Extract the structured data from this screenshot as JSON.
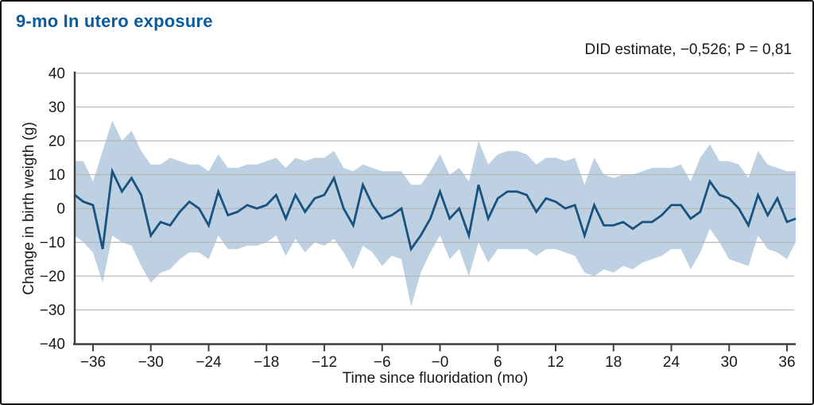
{
  "title": "9-mo In utero exposure",
  "annotation": "DID estimate, −0,526; P = 0,81",
  "colors": {
    "title_blue": "#0b5a9d",
    "line_navy": "#19527f",
    "band_blue": "#bdd1e2",
    "grid_gray": "#b3b3b3",
    "axis_dark": "#3d3d3d",
    "text_black": "#1a1a1a",
    "frame_black": "#141414",
    "background": "#ffffff"
  },
  "chart_data": {
    "type": "line",
    "title": "9-mo In utero exposure",
    "annotation": "DID estimate, −0,526; P = 0,81",
    "xlabel": "Time since fluoridation (mo)",
    "ylabel": "Change in birth weigth (g)",
    "xlim": [
      -38,
      37
    ],
    "ylim": [
      -40,
      40
    ],
    "grid": true,
    "legend_position": "none",
    "x_ticks": [
      -36,
      -30,
      -24,
      -18,
      -12,
      -6,
      0,
      6,
      12,
      18,
      24,
      30,
      36
    ],
    "x_tick_labels": [
      "−36",
      "−30",
      "−24",
      "−18",
      "−12",
      "−6",
      "−0",
      "6",
      "12",
      "18",
      "24",
      "30",
      "36"
    ],
    "y_ticks": [
      40,
      30,
      20,
      10,
      0,
      -10,
      -20,
      -30,
      -40
    ],
    "y_tick_labels": [
      "40",
      "30",
      "20",
      "10",
      "0",
      "−10",
      "−20",
      "−30",
      "−40"
    ],
    "x": [
      -38,
      -37,
      -36,
      -35,
      -34,
      -33,
      -32,
      -31,
      -30,
      -29,
      -28,
      -27,
      -26,
      -25,
      -24,
      -23,
      -22,
      -21,
      -20,
      -19,
      -18,
      -17,
      -16,
      -15,
      -14,
      -13,
      -12,
      -11,
      -10,
      -9,
      -8,
      -7,
      -6,
      -5,
      -4,
      -3,
      -2,
      -1,
      0,
      1,
      2,
      3,
      4,
      5,
      6,
      7,
      8,
      9,
      10,
      11,
      12,
      13,
      14,
      15,
      16,
      17,
      18,
      19,
      20,
      21,
      22,
      23,
      24,
      25,
      26,
      27,
      28,
      29,
      30,
      31,
      32,
      33,
      34,
      35,
      36,
      37
    ],
    "series": [
      {
        "name": "DID point estimate",
        "role": "line",
        "color": "#19527f",
        "values": [
          4,
          2,
          1,
          -12,
          11,
          5,
          9,
          4,
          -8,
          -4,
          -5,
          -1,
          2,
          0,
          -5,
          5,
          -2,
          -1,
          1,
          0,
          1,
          4,
          -3,
          4,
          -1,
          3,
          4,
          9,
          0,
          -5,
          7,
          1,
          -3,
          -2,
          0,
          -12,
          -8,
          -3,
          5,
          -3,
          0,
          -8,
          7,
          -3,
          3,
          5,
          5,
          4,
          -1,
          3,
          2,
          0,
          1,
          -8,
          1,
          -5,
          -5,
          -4,
          -6,
          -4,
          -4,
          -2,
          1,
          1,
          -3,
          -1,
          8,
          4,
          3,
          0,
          -5,
          4,
          -2,
          3,
          -4,
          -3
        ]
      },
      {
        "name": "confidence interval upper bound",
        "role": "band-upper",
        "color": "#bdd1e2",
        "values": [
          14,
          14,
          8,
          17,
          26,
          20,
          23,
          17,
          13,
          13,
          15,
          14,
          13,
          13,
          11,
          16,
          12,
          12,
          13,
          13,
          14,
          15,
          12,
          15,
          14,
          15,
          15,
          17,
          12,
          11,
          13,
          12,
          11,
          11,
          11,
          7,
          7,
          11,
          16,
          10,
          12,
          8,
          20,
          13,
          16,
          17,
          17,
          16,
          13,
          15,
          15,
          14,
          15,
          7,
          15,
          10,
          9,
          10,
          10,
          11,
          12,
          12,
          12,
          13,
          8,
          15,
          19,
          14,
          14,
          13,
          9,
          17,
          13,
          12,
          11,
          11
        ]
      },
      {
        "name": "confidence interval lower bound",
        "role": "band-lower",
        "color": "#bdd1e2",
        "values": [
          -8,
          -10,
          -13,
          -22,
          -8,
          -10,
          -11,
          -17,
          -22,
          -19,
          -18,
          -15,
          -13,
          -13,
          -15,
          -8,
          -12,
          -12,
          -11,
          -11,
          -10,
          -8,
          -14,
          -9,
          -13,
          -10,
          -11,
          -9,
          -13,
          -18,
          -11,
          -13,
          -17,
          -14,
          -15,
          -29,
          -19,
          -13,
          -8,
          -15,
          -12,
          -20,
          -10,
          -16,
          -12,
          -12,
          -12,
          -12,
          -14,
          -12,
          -12,
          -13,
          -14,
          -19,
          -20,
          -18,
          -19,
          -17,
          -18,
          -16,
          -15,
          -14,
          -12,
          -12,
          -18,
          -13,
          -6,
          -10,
          -15,
          -16,
          -17,
          -8,
          -12,
          -13,
          -15,
          -10
        ]
      }
    ]
  }
}
